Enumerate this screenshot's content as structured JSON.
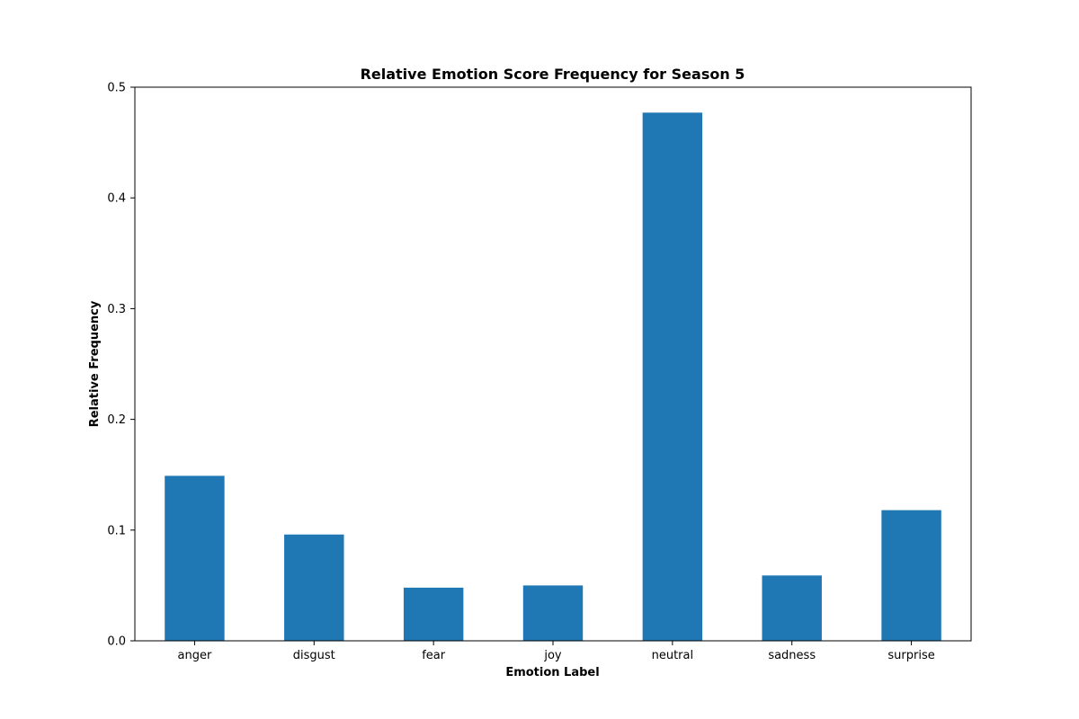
{
  "chart_data": {
    "type": "bar",
    "title": "Relative Emotion Score Frequency for Season 5",
    "xlabel": "Emotion Label",
    "ylabel": "Relative Frequency",
    "categories": [
      "anger",
      "disgust",
      "fear",
      "joy",
      "neutral",
      "sadness",
      "surprise"
    ],
    "values": [
      0.149,
      0.096,
      0.048,
      0.05,
      0.477,
      0.059,
      0.118
    ],
    "ylim": [
      0,
      0.5
    ],
    "yticks": [
      0.0,
      0.1,
      0.2,
      0.3,
      0.4,
      0.5
    ],
    "ytick_labels": [
      "0.0",
      "0.1",
      "0.2",
      "0.3",
      "0.4",
      "0.5"
    ],
    "grid": false,
    "bar_color": "#1f77b4"
  }
}
